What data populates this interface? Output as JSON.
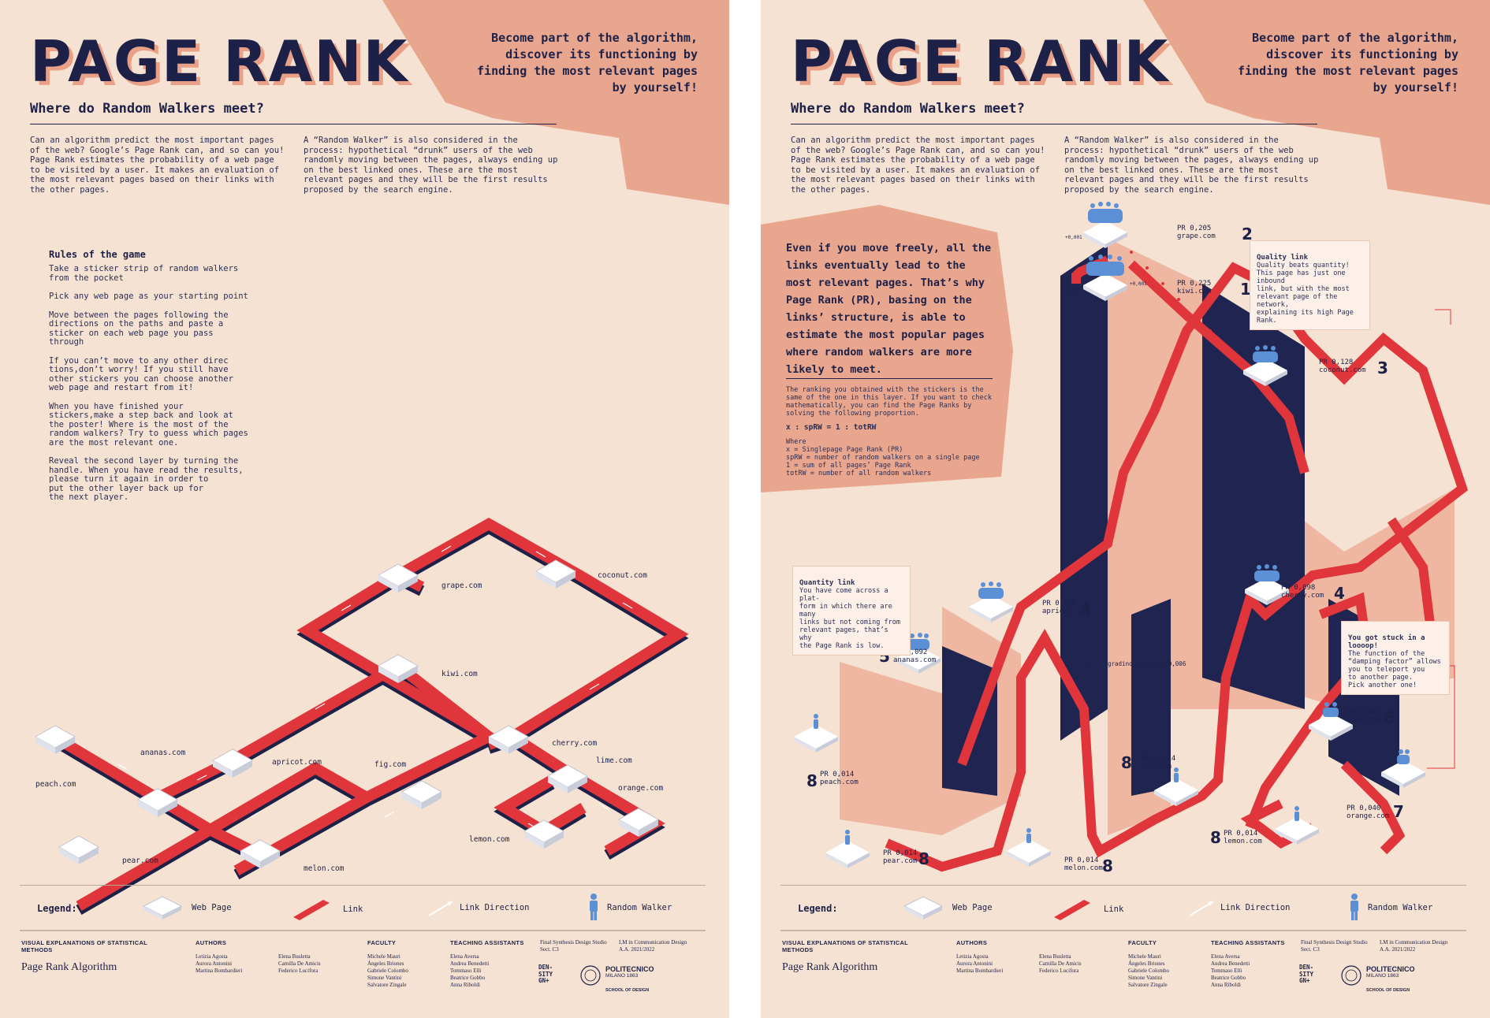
{
  "poster": {
    "title": "PAGE RANK",
    "tagline": "Become part of the algorithm, discover its functioning by finding the most relevant pages by yourself!",
    "subtitle": "Where do Random Walkers meet?",
    "intro_left": "Can an algorithm predict the most important pages of the web? Google’s Page Rank can, and so can you! Page Rank estimates the probability of a web page to be visited by a user. It makes an evaluation of the most relevant pages based on their links with the other pages.",
    "intro_right": "A “Random Walker” is also considered in the process: hypothetical “drunk” users of the web randomly moving between the pages, always ending up on the best linked ones. These are the most relevant pages and they will be the first results proposed by the search engine."
  },
  "rules": {
    "title": "Rules of the game",
    "items": [
      "Take a sticker strip of random walkers\nfrom the pocket",
      "Pick any web page as your starting point",
      "Move between the pages following the\ndirections on the paths and paste a\nsticker on each web page you pass\nthrough",
      "If you can’t move to any other direc\ntions,don’t worry! If you still have\nother stickers you can choose another\nweb page and restart from it!",
      "When you have finished your\nstickers,make a step back and look at\nthe poster! Where is the most of the\nrandom walkers? Try to guess which pages\nare the most relevant one.",
      "Reveal the second layer by turning the\nhandle. When you have read the results,\nplease turn it again in order to\nput the other layer back up for\nthe next player."
    ]
  },
  "pages": {
    "grape": "grape.com",
    "coconut": "coconut.com",
    "kiwi": "kiwi.com",
    "ananas": "ananas.com",
    "apricot": "apricot.com",
    "fig": "fig.com",
    "cherry": "cherry.com",
    "lime": "lime.com",
    "peach": "peach.com",
    "orange": "orange.com",
    "lemon": "lemon.com",
    "pear": "pear.com",
    "melon": "melon.com"
  },
  "legend": {
    "title": "Legend:",
    "web_page": "Web Page",
    "link": "Link",
    "link_direction": "Link Direction",
    "random_walker": "Random Walker"
  },
  "footer": {
    "course": "VISUAL EXPLANATIONS OF STATISTICAL METHODS",
    "project": "Page Rank Algorithm",
    "authors_title": "AUTHORS",
    "authors_col1": "Letizia Agosta\nAurora Antonini\nMartina Bombardieri",
    "authors_col2": "Elena Busletta\nCamilla De Amicis\nFederico Lucifora",
    "faculty_title": "FACULTY",
    "faculty": "Michele Mauri\nÁngeles Briones\nGabriele Colombo\nSimone Vantini\nSalvatore Zingale",
    "ta_title": "TEACHING ASSISTANTS",
    "ta": "Elena Aversa\nAndrea Benedetti\nTommaso Elli\nBeatrice Gobbo\nAnna Riboldi",
    "studio": "Final Synthesis Design Studio\nSect. C3",
    "degree": "LM in Communication Design\nA.A. 2021/2022",
    "density": "DEN-\nSITY\nGN+",
    "university": "POLITECNICO",
    "university_sub": "MILANO 1863",
    "school": "SCHOOL OF DESIGN"
  },
  "results": {
    "blob_text": "Even if you move freely, all the links eventually lead to the most relevant pages. That’s why Page Rank (PR), basing on the links’ structure, is able to estimate the most popular pages where random walkers are more likely to meet.",
    "blob_small": "The ranking you obtained with the stickers is the same of the one in this layer. If you want to check mathematically, you can find the Page Ranks by solving the following proportion.",
    "formula": "x : spRW = 1 : totRW",
    "where": "Where",
    "def_x": "x = Singlepage Page Rank (PR)",
    "def_sprw": "spRW = number of random walkers on a single page",
    "def_one": "1 = sum of all pages’ Page Rank",
    "def_tot": "totRW = number of all random walkers",
    "quality_title": "Quality link",
    "quality_text": "Quality beats quantity!\nThis page has just one inbound\nlink, but with the most\nrelevant page of the network,\nexplaining its high Page Rank.",
    "quantity_title": "Quantity link",
    "quantity_text": "You have come across a plat-\nform in which there are many\nlinks but not coming from\nrelevant pages, that’s why\nthe Page Rank is low.",
    "loop_title": "You got stuck in a loooop!",
    "loop_text": "The function of the\n“damping factor” allows\nyou to teleport you\nto another page.\nPick another one!",
    "step_note": "gradino standard\n0,006",
    "arrow_value": "+0,001",
    "ranks": [
      {
        "page": "grape.com",
        "pr": "PR 0,205",
        "rank": "2"
      },
      {
        "page": "kiwi.com",
        "pr": "PR 0,225",
        "rank": "1"
      },
      {
        "page": "coconut.com",
        "pr": "PR 0,128",
        "rank": "3"
      },
      {
        "page": "apricot.com",
        "pr": "PR 0,098",
        "rank": "4"
      },
      {
        "page": "cherry.com",
        "pr": "PR 0,098",
        "rank": "4"
      },
      {
        "page": "ananas.com",
        "pr": "PR 0,092",
        "rank": "5"
      },
      {
        "page": "lime.com",
        "pr": "PR 0,047",
        "rank": "6"
      },
      {
        "page": "orange.com",
        "pr": "PR 0,040",
        "rank": "7"
      },
      {
        "page": "peach.com",
        "pr": "PR 0,014",
        "rank": "8"
      },
      {
        "page": "fig.com",
        "pr": "PR 0,014",
        "rank": "8"
      },
      {
        "page": "lemon.com",
        "pr": "PR 0,014",
        "rank": "8"
      },
      {
        "page": "pear.com",
        "pr": "PR 0,014",
        "rank": "8"
      },
      {
        "page": "melon.com",
        "pr": "PR 0,014",
        "rank": "8"
      }
    ]
  },
  "colors": {
    "background": "#f6e2d2",
    "salmon": "#e9a68f",
    "navy": "#1d2147",
    "link_red": "#e0353b",
    "walker_blue": "#5b8fd6"
  }
}
